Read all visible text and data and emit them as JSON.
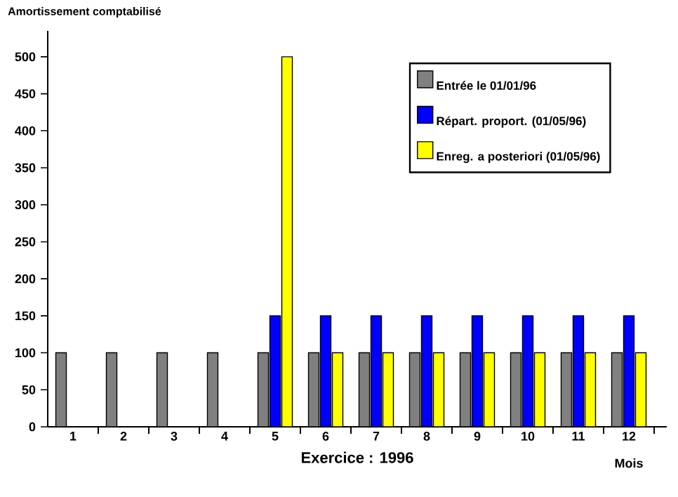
{
  "chart_data": {
    "type": "bar",
    "ylabel": "Amortissement comptabilisé",
    "xlabel": "Exercice : 1996",
    "annotations": [
      "Mois"
    ],
    "categories": [
      "1",
      "2",
      "3",
      "4",
      "5",
      "6",
      "7",
      "8",
      "9",
      "10",
      "11",
      "12"
    ],
    "series": [
      {
        "name": "Entrée le 01/01/96",
        "color": "#808080",
        "values": [
          100,
          100,
          100,
          100,
          100,
          100,
          100,
          100,
          100,
          100,
          100,
          100
        ]
      },
      {
        "name": "Répart. proport. (01/05/96)",
        "color": "#0000ff",
        "values": [
          null,
          null,
          null,
          null,
          150,
          150,
          150,
          150,
          150,
          150,
          150,
          150
        ]
      },
      {
        "name": "Enreg. a posteriori (01/05/96)",
        "color": "#ffff00",
        "values": [
          null,
          null,
          null,
          null,
          500,
          100,
          100,
          100,
          100,
          100,
          100,
          100
        ]
      }
    ],
    "ylim": [
      0,
      535
    ],
    "yticks": [
      0,
      50,
      100,
      150,
      200,
      250,
      300,
      350,
      400,
      450,
      500
    ],
    "legend": "top right"
  }
}
